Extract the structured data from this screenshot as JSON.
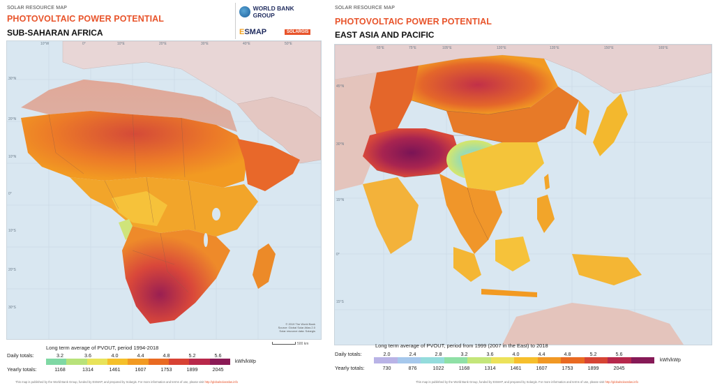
{
  "left": {
    "kicker": "SOLAR RESOURCE MAP",
    "title": "PHOTOVOLTAIC POWER POTENTIAL",
    "region": "SUB-SAHARAN AFRICA",
    "logos": {
      "world_bank": "WORLD BANK GROUP",
      "esmap_e": "E",
      "esmap_rest": "SMAP",
      "solargis": "SOLARGIS"
    },
    "coords_top": [
      "10°W",
      "0°",
      "10°E",
      "20°E",
      "30°E",
      "40°E",
      "50°E"
    ],
    "coords_left": [
      "30°N",
      "20°N",
      "10°N",
      "0°",
      "10°S",
      "20°S",
      "30°S"
    ],
    "credit_lines": [
      "© 2019 The World Bank",
      "Source: Global Solar Atlas 2.0",
      "Solar resource data: Solargis"
    ],
    "scale_label": "500 km",
    "legend": {
      "caption": "Long term average of PVOUT, period 1994-2018",
      "daily_label": "Daily totals:",
      "yearly_label": "Yearly totals:",
      "daily_ticks": [
        "3.2",
        "3.6",
        "4.0",
        "4.4",
        "4.8",
        "5.2",
        "5.6"
      ],
      "yearly_ticks": [
        "1168",
        "1314",
        "1461",
        "1607",
        "1753",
        "1899",
        "2045"
      ],
      "unit": "kWh/kWp",
      "colors": [
        "#7fd8a4",
        "#b8e27a",
        "#e8e35a",
        "#f5c02a",
        "#f29a22",
        "#e96a22",
        "#d84234",
        "#b8284a",
        "#8a1a55"
      ]
    },
    "footer": "This map is published by the World Bank Group, funded by ESMAP, and prepared by Solargis. For more information and terms of use, please visit",
    "footer_link": "http://globalsolaratlas.info"
  },
  "right": {
    "kicker": "SOLAR RESOURCE MAP",
    "title": "PHOTOVOLTAIC POWER POTENTIAL",
    "region": "EAST ASIA AND PACIFIC",
    "coords_top": [
      "65°E",
      "75°E",
      "105°E",
      "120°E",
      "135°E",
      "150°E",
      "165°E"
    ],
    "coords_left": [
      "45°N",
      "30°N",
      "15°N",
      "0°",
      "15°S"
    ],
    "legend": {
      "caption": "Long term average of PVOUT, period from 1999 (2007 in the East) to 2018",
      "daily_label": "Daily totals:",
      "yearly_label": "Yearly totals:",
      "daily_ticks": [
        "2.0",
        "2.4",
        "2.8",
        "3.2",
        "3.6",
        "4.0",
        "4.4",
        "4.8",
        "5.2",
        "5.6"
      ],
      "yearly_ticks": [
        "730",
        "876",
        "1022",
        "1168",
        "1314",
        "1461",
        "1607",
        "1753",
        "1899",
        "2045"
      ],
      "unit": "kWh/kWp",
      "colors": [
        "#b9b3e6",
        "#a6c8ec",
        "#94dcdc",
        "#8fe0a6",
        "#c4e67a",
        "#ece25a",
        "#f6bf2c",
        "#f19824",
        "#e96a22",
        "#d64434",
        "#b6284c",
        "#861a57"
      ]
    },
    "footer": "This map is published by the World Bank Group, funded by ESMAP, and prepared by Solargis. For more information and terms of use, please visit",
    "footer_link": "http://globalsolaratlas.info"
  }
}
